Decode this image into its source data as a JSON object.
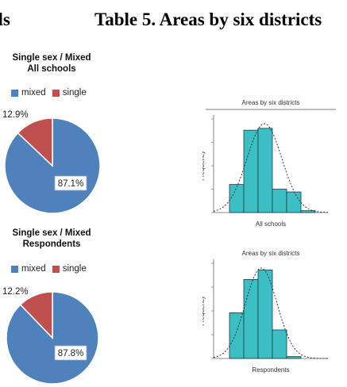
{
  "header": {
    "left_fragment": "ols",
    "title": "Table 5. Areas by six districts"
  },
  "pies": [
    {
      "title_line1": "Single sex / Mixed",
      "title_line2": "All schools",
      "legend": [
        {
          "label": "mixed",
          "color": "#4f81bd"
        },
        {
          "label": "single",
          "color": "#c0504d"
        }
      ],
      "small_label": "12.9%",
      "large_label": "87.1%"
    },
    {
      "title_line1": "Single sex / Mixed",
      "title_line2": "Respondents",
      "legend": [
        {
          "label": "mixed",
          "color": "#4f81bd"
        },
        {
          "label": "single",
          "color": "#c0504d"
        }
      ],
      "small_label": "12.2%",
      "large_label": "87.8%"
    }
  ],
  "histograms": [
    {
      "title": "Areas by six districts",
      "ylabel": "Frequency",
      "xlabel": "All schools"
    },
    {
      "title": "Areas by six districts",
      "ylabel": "Frequency",
      "xlabel": "Respondents"
    }
  ],
  "chart_data": [
    {
      "type": "pie",
      "title": "Single sex / Mixed All schools",
      "categories": [
        "mixed",
        "single"
      ],
      "values": [
        87.1,
        12.9
      ],
      "colors": [
        "#4f81bd",
        "#c0504d"
      ],
      "legend": "top"
    },
    {
      "type": "pie",
      "title": "Single sex / Mixed Respondents",
      "categories": [
        "mixed",
        "single"
      ],
      "values": [
        87.8,
        12.2
      ],
      "colors": [
        "#4f81bd",
        "#c0504d"
      ],
      "legend": "top"
    },
    {
      "type": "bar",
      "title": "Areas by six districts",
      "xlabel": "All schools",
      "ylabel": "Frequency",
      "values": [
        0.3,
        0.88,
        0.9,
        0.25,
        0.22,
        0.02
      ],
      "normal_curve": true,
      "color": "#3bbfc4"
    },
    {
      "type": "bar",
      "title": "Areas by six districts",
      "xlabel": "Respondents",
      "ylabel": "Frequency",
      "values": [
        0.48,
        0.83,
        0.93,
        0.3,
        0.02
      ],
      "normal_curve": true,
      "color": "#3bbfc4"
    }
  ]
}
